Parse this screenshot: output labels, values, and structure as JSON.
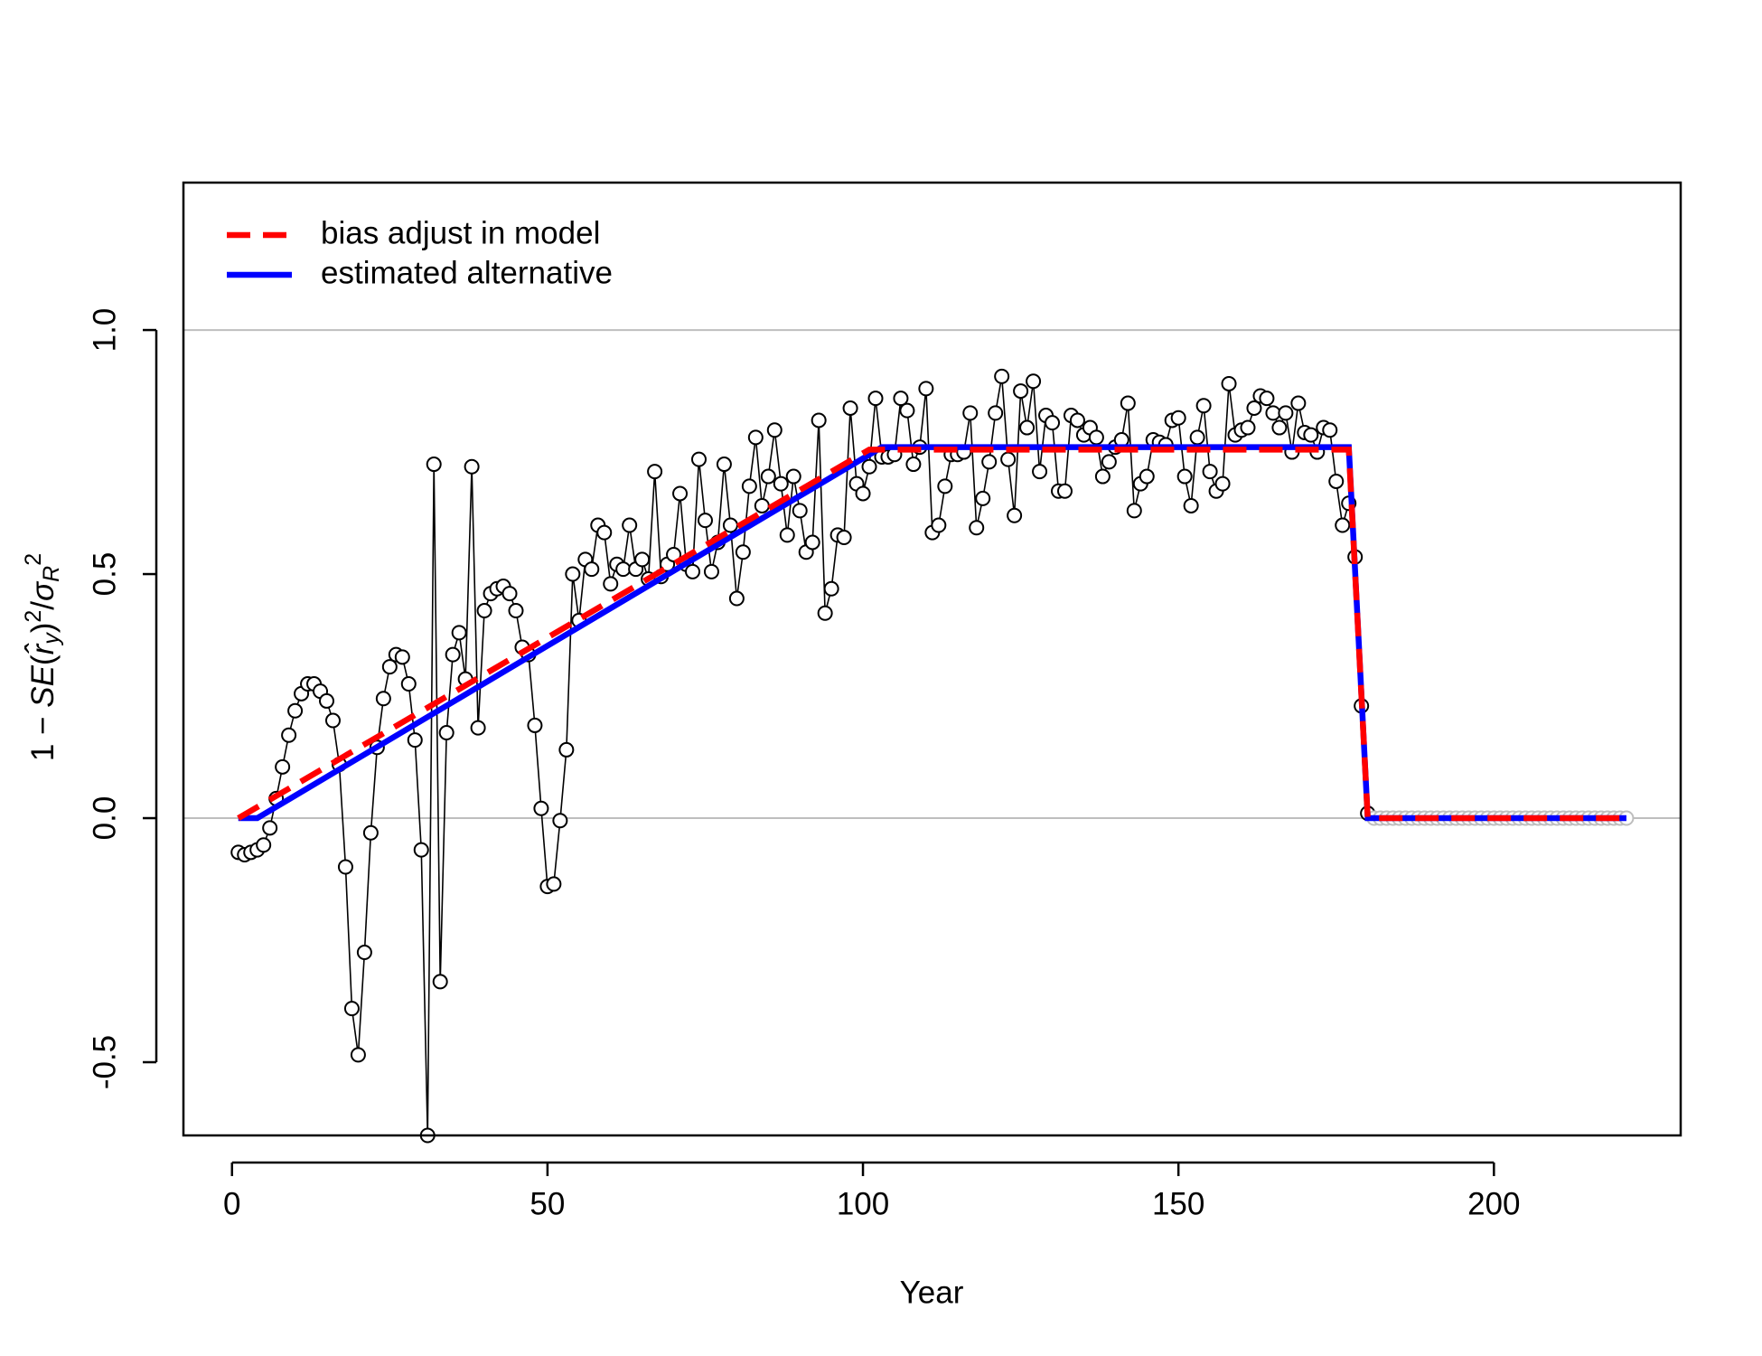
{
  "chart_data": {
    "type": "scatter",
    "xlabel": "Year",
    "ylabel": [
      "1 − ",
      "SE",
      "(",
      "r̂",
      "y",
      ")",
      "2",
      "/",
      "σ",
      "R",
      "2"
    ],
    "xlim": [
      -7.7,
      229.6
    ],
    "ylim": [
      -0.65,
      1.302
    ],
    "xticks": [
      0,
      50,
      100,
      150,
      200
    ],
    "yticks": [
      -0.5,
      {
        "value": 0,
        "label": "0.0"
      },
      0.5,
      {
        "value": 1,
        "label": "1.0"
      }
    ],
    "hlines": [
      0,
      1
    ],
    "hline_color": "#bebebe",
    "legend": "topleft",
    "series": [
      {
        "type": "points",
        "connect": true,
        "color": "#000000",
        "x": [
          1,
          2,
          3,
          4,
          5,
          6,
          7,
          8,
          9,
          10,
          11,
          12,
          13,
          14,
          15,
          16,
          17,
          18,
          19,
          20,
          21,
          22,
          23,
          24,
          25,
          26,
          27,
          28,
          29,
          30,
          31,
          32,
          33,
          34,
          35,
          36,
          37,
          38,
          39,
          40,
          41,
          42,
          43,
          44,
          45,
          46,
          47,
          48,
          49,
          50,
          51,
          52,
          53,
          54,
          55,
          56,
          57,
          58,
          59,
          60,
          61,
          62,
          63,
          64,
          65,
          66,
          67,
          68,
          69,
          70,
          71,
          72,
          73,
          74,
          75,
          76,
          77,
          78,
          79,
          80,
          81,
          82,
          83,
          84,
          85,
          86,
          87,
          88,
          89,
          90,
          91,
          92,
          93,
          94,
          95,
          96,
          97,
          98,
          99,
          100,
          101,
          102,
          103,
          104,
          105,
          106,
          107,
          108,
          109,
          110,
          111,
          112,
          113,
          114,
          115,
          116,
          117,
          118,
          119,
          120,
          121,
          122,
          123,
          124,
          125,
          126,
          127,
          128,
          129,
          130,
          131,
          132,
          133,
          134,
          135,
          136,
          137,
          138,
          139,
          140,
          141,
          142,
          143,
          144,
          145,
          146,
          147,
          148,
          149,
          150,
          151,
          152,
          153,
          154,
          155,
          156,
          157,
          158,
          159,
          160,
          161,
          162,
          163,
          164,
          165,
          166,
          167,
          168,
          169,
          170,
          171,
          172,
          173,
          174,
          175,
          176,
          177,
          178,
          179,
          180
        ],
        "values": [
          -0.07,
          -0.075,
          -0.07,
          -0.065,
          -0.055,
          -0.02,
          0.04,
          0.105,
          0.17,
          0.22,
          0.255,
          0.275,
          0.275,
          0.26,
          0.24,
          0.2,
          0.11,
          -0.1,
          -0.39,
          -0.485,
          -0.275,
          -0.03,
          0.145,
          0.245,
          0.31,
          0.335,
          0.33,
          0.275,
          0.16,
          -0.065,
          -0.65,
          0.725,
          -0.335,
          0.175,
          0.335,
          0.38,
          0.285,
          0.72,
          0.185,
          0.425,
          0.46,
          0.47,
          0.475,
          0.46,
          0.425,
          0.35,
          0.335,
          0.19,
          0.02,
          -0.14,
          -0.135,
          -0.005,
          0.14,
          0.5,
          0.405,
          0.53,
          0.51,
          0.6,
          0.585,
          0.48,
          0.52,
          0.51,
          0.6,
          0.51,
          0.53,
          0.49,
          0.71,
          0.495,
          0.52,
          0.54,
          0.665,
          0.52,
          0.505,
          0.735,
          0.61,
          0.505,
          0.565,
          0.725,
          0.6,
          0.45,
          0.545,
          0.68,
          0.78,
          0.64,
          0.7,
          0.795,
          0.685,
          0.58,
          0.7,
          0.63,
          0.545,
          0.565,
          0.815,
          0.42,
          0.47,
          0.58,
          0.575,
          0.84,
          0.685,
          0.665,
          0.72,
          0.86,
          0.74,
          0.74,
          0.745,
          0.86,
          0.835,
          0.725,
          0.76,
          0.88,
          0.585,
          0.6,
          0.68,
          0.745,
          0.745,
          0.75,
          0.83,
          0.595,
          0.655,
          0.73,
          0.83,
          0.905,
          0.735,
          0.62,
          0.875,
          0.8,
          0.895,
          0.71,
          0.825,
          0.81,
          0.67,
          0.67,
          0.825,
          0.815,
          0.785,
          0.8,
          0.78,
          0.7,
          0.73,
          0.76,
          0.775,
          0.85,
          0.63,
          0.685,
          0.7,
          0.775,
          0.77,
          0.765,
          0.815,
          0.82,
          0.7,
          0.64,
          0.78,
          0.845,
          0.71,
          0.67,
          0.685,
          0.89,
          0.785,
          0.795,
          0.8,
          0.84,
          0.865,
          0.86,
          0.83,
          0.8,
          0.83,
          0.75,
          0.85,
          0.79,
          0.785,
          0.75,
          0.8,
          0.795,
          0.69,
          0.6,
          0.645,
          0.535,
          0.23,
          0.01
        ]
      },
      {
        "type": "points",
        "color": "#bebebe",
        "x": [
          181,
          182,
          183,
          184,
          185,
          186,
          187,
          188,
          189,
          190,
          191,
          192,
          193,
          194,
          195,
          196,
          197,
          198,
          199,
          200,
          201,
          202,
          203,
          204,
          205,
          206,
          207,
          208,
          209,
          210,
          211,
          212,
          213,
          214,
          215,
          216,
          217,
          218,
          219,
          220,
          221
        ],
        "values": [
          0,
          0,
          0,
          0,
          0,
          0,
          0,
          0,
          0,
          0,
          0,
          0,
          0,
          0,
          0,
          0,
          0,
          0,
          0,
          0,
          0,
          0,
          0,
          0,
          0,
          0,
          0,
          0,
          0,
          0,
          0,
          0,
          0,
          0,
          0,
          0,
          0,
          0,
          0,
          0,
          0
        ]
      },
      {
        "type": "line",
        "name": "bias adjust in model",
        "color": "#ff0000",
        "linestyle": "dashed",
        "x": [
          1,
          101,
          177,
          180,
          221
        ],
        "values": [
          0,
          0.755,
          0.755,
          0,
          0
        ]
      },
      {
        "type": "line",
        "name": "estimated alternative",
        "color": "#0000ff",
        "linestyle": "solid",
        "x": [
          1,
          4,
          103,
          177,
          180,
          221
        ],
        "values": [
          0,
          0,
          0.76,
          0.76,
          0,
          0
        ]
      }
    ]
  }
}
